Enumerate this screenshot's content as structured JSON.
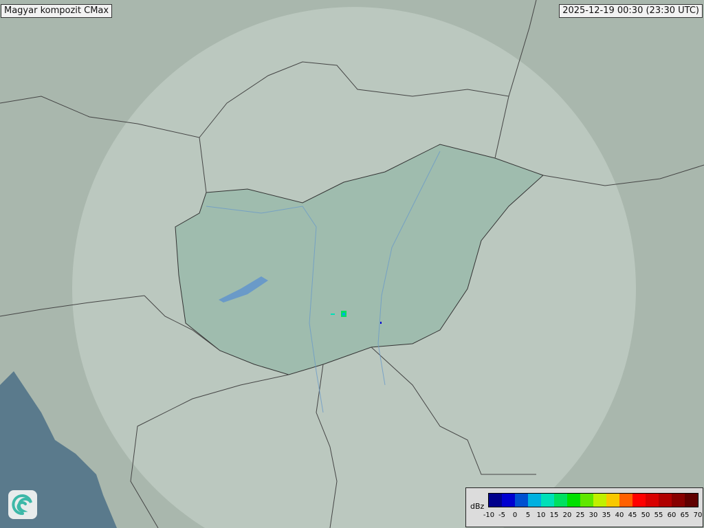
{
  "title": "Magyar kompozit  CMax",
  "timestamp": "2025-12-19 00:30 (23:30 UTC)",
  "legend": {
    "unit": "dBz",
    "ticks": [
      "-10",
      "-5",
      "0",
      "5",
      "10",
      "15",
      "20",
      "25",
      "30",
      "35",
      "40",
      "45",
      "50",
      "55",
      "60",
      "65",
      "70"
    ],
    "colors": [
      "#00008c",
      "#0000d0",
      "#0050d0",
      "#00b0e0",
      "#00e0b8",
      "#00e060",
      "#00e000",
      "#60e800",
      "#c0f000",
      "#f8c800",
      "#ff6000",
      "#ff0000",
      "#d80000",
      "#b00000",
      "#880000",
      "#600000"
    ]
  },
  "logo": "met-service-swirl-logo"
}
